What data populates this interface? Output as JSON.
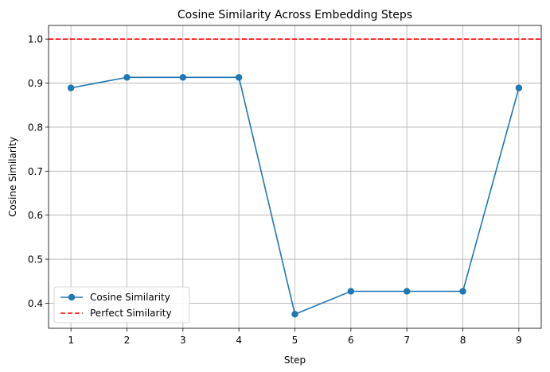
{
  "chart_data": {
    "type": "line",
    "title": "Cosine Similarity Across Embedding Steps",
    "xlabel": "Step",
    "ylabel": "Cosine Similarity",
    "x": [
      1,
      2,
      3,
      4,
      5,
      6,
      7,
      8,
      9
    ],
    "xlim": [
      0.6,
      9.4
    ],
    "ylim": [
      0.343,
      1.031
    ],
    "xticks": [
      "1",
      "2",
      "3",
      "4",
      "5",
      "6",
      "7",
      "8",
      "9"
    ],
    "yticks": [
      "0.4",
      "0.5",
      "0.6",
      "0.7",
      "0.8",
      "0.9",
      "1.0"
    ],
    "grid": true,
    "legend_position": "lower-left",
    "series": [
      {
        "name": "Cosine Similarity",
        "values": [
          0.889,
          0.913,
          0.913,
          0.913,
          0.375,
          0.427,
          0.427,
          0.427,
          0.889
        ],
        "color": "#1f77b4",
        "marker": "circle"
      }
    ],
    "reference_lines": [
      {
        "name": "Perfect Similarity",
        "y": 1.0,
        "color": "#ff0000",
        "style": "dashed"
      }
    ]
  }
}
